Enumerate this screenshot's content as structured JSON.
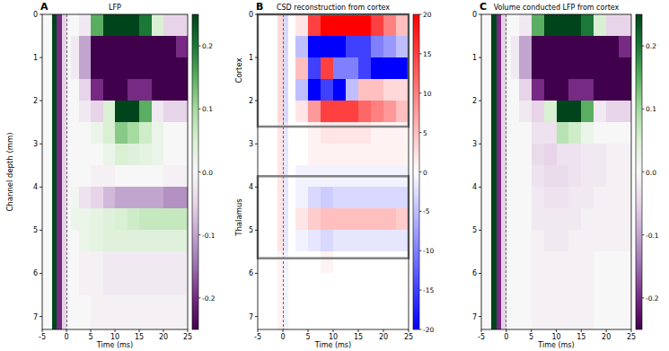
{
  "chart_data": [
    {
      "type": "heatmap",
      "label": "A",
      "title": "LFP",
      "xlabel": "Time (ms)",
      "ylabel": "Channel depth (mm)",
      "xlim": [
        -5,
        25
      ],
      "ylim": [
        7.3,
        0
      ],
      "xticks": [
        -5,
        0,
        5,
        10,
        15,
        20,
        25
      ],
      "yticks": [
        0,
        1,
        2,
        3,
        4,
        5,
        6,
        7
      ],
      "vline": 0,
      "color": [
        "#40004b",
        "#762a83",
        "#9970ab",
        "#c2a5cf",
        "#e7d4e8",
        "#f7f7f7",
        "#d9f0d3",
        "#a6dba0",
        "#5aae61",
        "#1b7837",
        "#00441b"
      ],
      "colorbar": {
        "range": [
          -0.25,
          0.25
        ],
        "ticks": [
          -0.2,
          -0.1,
          {
            "value": 0,
            "label": "0.0"
          },
          0.1,
          0.2
        ]
      },
      "x_edges": [
        -5,
        -3,
        -2,
        -1,
        0,
        1,
        2.5,
        5,
        7.5,
        10,
        12.5,
        15,
        17.5,
        20,
        22.5,
        25
      ],
      "y_edges": [
        0,
        0.5,
        1,
        1.5,
        2,
        2.5,
        3,
        3.5,
        4,
        4.5,
        5,
        5.5,
        6,
        6.5,
        7,
        7.3
      ],
      "cells": [
        [
          0,
          0.25,
          -0.2,
          -0.05,
          0,
          0,
          -0.02,
          0.15,
          0.3,
          0.3,
          0.3,
          0.2,
          0.05,
          -0.05,
          -0.05
        ],
        [
          0,
          0.25,
          -0.2,
          -0.05,
          0,
          -0.02,
          -0.1,
          -0.3,
          -0.3,
          -0.3,
          -0.3,
          -0.3,
          -0.3,
          -0.25,
          -0.2
        ],
        [
          0,
          0.25,
          -0.2,
          -0.05,
          0,
          -0.02,
          -0.1,
          -0.3,
          -0.3,
          -0.3,
          -0.3,
          -0.3,
          -0.3,
          -0.3,
          -0.3
        ],
        [
          0,
          0.25,
          -0.2,
          -0.05,
          0,
          0,
          -0.05,
          -0.2,
          -0.3,
          -0.25,
          -0.2,
          -0.2,
          -0.25,
          -0.3,
          -0.3
        ],
        [
          0,
          0.25,
          -0.2,
          -0.05,
          0,
          0,
          -0.02,
          -0.05,
          0.05,
          0.3,
          0.3,
          0.15,
          -0.02,
          -0.05,
          -0.05
        ],
        [
          0,
          0.25,
          -0.2,
          -0.05,
          0,
          0,
          0,
          0.02,
          0.05,
          0.12,
          0.1,
          0.06,
          0.02,
          0,
          0
        ],
        [
          0,
          0.25,
          -0.2,
          -0.05,
          0,
          0,
          0,
          0,
          0.02,
          0.05,
          0.04,
          0.03,
          0.02,
          0,
          0
        ],
        [
          0,
          0.25,
          -0.2,
          -0.05,
          0,
          0,
          0,
          -0.01,
          -0.01,
          0,
          0,
          0,
          0,
          -0.01,
          -0.01
        ],
        [
          0,
          0.25,
          -0.2,
          -0.05,
          0,
          0.01,
          -0.03,
          -0.05,
          -0.08,
          -0.1,
          -0.1,
          -0.1,
          -0.1,
          -0.12,
          -0.12
        ],
        [
          0,
          0.25,
          -0.2,
          -0.05,
          0,
          0.02,
          0.02,
          0.03,
          0.04,
          0.05,
          0.06,
          0.07,
          0.07,
          0.07,
          0.07
        ],
        [
          0,
          0.25,
          -0.2,
          -0.05,
          0,
          0,
          0.02,
          0.03,
          0.04,
          0.04,
          0.04,
          0.04,
          0.04,
          0.04,
          0.04
        ],
        [
          0,
          0.25,
          -0.2,
          -0.05,
          0,
          0,
          -0.01,
          -0.01,
          -0.02,
          -0.02,
          -0.02,
          -0.02,
          -0.02,
          -0.02,
          -0.02
        ],
        [
          0,
          0.25,
          -0.2,
          -0.05,
          0,
          0,
          -0.01,
          -0.01,
          -0.02,
          -0.02,
          -0.02,
          -0.02,
          -0.02,
          -0.02,
          -0.02
        ],
        [
          0,
          0.25,
          -0.2,
          -0.05,
          0,
          0,
          0,
          -0.01,
          -0.01,
          -0.01,
          -0.01,
          -0.01,
          -0.01,
          -0.01,
          -0.01
        ],
        [
          0,
          0.25,
          -0.2,
          -0.05,
          0,
          0,
          0,
          -0.01,
          -0.01,
          -0.01,
          -0.01,
          -0.01,
          -0.01,
          -0.01,
          -0.01
        ]
      ]
    },
    {
      "type": "heatmap",
      "label": "B",
      "title": "CSD reconstruction from cortex",
      "xlabel": "Time (ms)",
      "xlim": [
        -5,
        25
      ],
      "ylim": [
        7.3,
        0
      ],
      "xticks": [
        -5,
        0,
        5,
        10,
        15,
        20,
        25
      ],
      "yticks": [
        0,
        1,
        2,
        3,
        4,
        5,
        6,
        7
      ],
      "vline": 0,
      "color": [
        "#0000ff",
        "#ffffff",
        "#ff0000"
      ],
      "colorbar": {
        "range": [
          -20,
          20
        ],
        "ticks": [
          -20,
          -15,
          -10,
          -5,
          0,
          5,
          10,
          15,
          20
        ]
      },
      "regions": [
        {
          "label": "Cortex",
          "ylim": [
            0,
            2.6
          ]
        },
        {
          "label": "Thalamus",
          "ylim": [
            3.75,
            5.65
          ]
        }
      ],
      "x_edges": [
        -5,
        -3,
        -2,
        -1,
        0,
        1,
        2.5,
        5,
        7.5,
        10,
        12.5,
        15,
        17.5,
        20,
        22.5,
        25
      ],
      "y_edges": [
        0,
        0.5,
        1,
        1.5,
        2,
        2.5,
        3,
        3.5,
        4,
        4.5,
        5,
        5.5,
        6,
        6.5,
        7,
        7.3
      ],
      "cells": [
        [
          0,
          0,
          0,
          3,
          -3,
          0,
          2,
          15,
          20,
          20,
          20,
          20,
          15,
          10,
          5
        ],
        [
          0,
          0,
          0,
          3,
          -3,
          0,
          -5,
          -20,
          -20,
          -20,
          -15,
          -15,
          -10,
          -8,
          -5
        ],
        [
          0,
          0,
          0,
          3,
          -3,
          0,
          5,
          -15,
          15,
          -10,
          -10,
          -15,
          -20,
          -20,
          -20
        ],
        [
          0,
          0,
          0,
          3,
          -3,
          0,
          -5,
          -20,
          -15,
          -20,
          -5,
          5,
          5,
          3,
          3
        ],
        [
          0,
          0,
          0,
          3,
          -3,
          0,
          2,
          8,
          15,
          15,
          15,
          12,
          10,
          8,
          5
        ],
        [
          0,
          0,
          0,
          2,
          -2,
          0,
          0,
          1,
          2,
          2,
          2,
          2,
          1,
          1,
          1
        ],
        [
          0,
          0,
          0,
          2,
          -2,
          0,
          0,
          1,
          1,
          1,
          1,
          1,
          1,
          1,
          1
        ],
        [
          0,
          0,
          0,
          2,
          -2,
          0,
          -1,
          -1,
          -1,
          -1,
          -1,
          -1,
          -1,
          -1,
          -1
        ],
        [
          0,
          0,
          0,
          2,
          -2,
          0,
          -1,
          -3,
          -4,
          -3,
          -3,
          -3,
          -3,
          -3,
          -3
        ],
        [
          0,
          0,
          0,
          2,
          -2,
          0,
          2,
          4,
          5,
          5,
          5,
          5,
          5,
          5,
          4
        ],
        [
          0,
          0,
          0,
          2,
          -2,
          0,
          -1,
          -2,
          -3,
          -2,
          -2,
          -2,
          -2,
          -2,
          -2
        ],
        [
          0,
          0,
          0,
          1,
          -1,
          0,
          0,
          0,
          1,
          0,
          0,
          0,
          0,
          0,
          0
        ],
        [
          0,
          0,
          0,
          1,
          -1,
          0,
          0,
          0,
          0,
          0,
          0,
          0,
          0,
          0,
          0
        ],
        [
          0,
          0,
          0,
          1,
          -1,
          0,
          0,
          0,
          0,
          0,
          0,
          0,
          0,
          0,
          0
        ],
        [
          0,
          0,
          0,
          1,
          -1,
          0,
          0,
          0,
          0,
          0,
          0,
          0,
          0,
          0,
          0
        ]
      ]
    },
    {
      "type": "heatmap",
      "label": "C",
      "title": "Volume conducted LFP from cortex",
      "xlabel": "Time (ms)",
      "xlim": [
        -5,
        25
      ],
      "ylim": [
        7.3,
        0
      ],
      "xticks": [
        -5,
        0,
        5,
        10,
        15,
        20,
        25
      ],
      "yticks": [
        0,
        1,
        2,
        3,
        4,
        5,
        6,
        7
      ],
      "vline": 0,
      "color": [
        "#40004b",
        "#762a83",
        "#9970ab",
        "#c2a5cf",
        "#e7d4e8",
        "#f7f7f7",
        "#d9f0d3",
        "#a6dba0",
        "#5aae61",
        "#1b7837",
        "#00441b"
      ],
      "colorbar": {
        "range": [
          -0.25,
          0.25
        ],
        "ticks": [
          -0.2,
          -0.1,
          {
            "value": 0,
            "label": "0.0"
          },
          0.1,
          0.2
        ]
      },
      "x_edges": [
        -5,
        -3,
        -2,
        -1,
        0,
        1,
        2.5,
        5,
        7.5,
        10,
        12.5,
        15,
        17.5,
        20,
        22.5,
        25
      ],
      "y_edges": [
        0,
        0.5,
        1,
        1.5,
        2,
        2.5,
        3,
        3.5,
        4,
        4.5,
        5,
        5.5,
        6,
        6.5,
        7,
        7.3
      ],
      "cells": [
        [
          0,
          0.25,
          -0.2,
          -0.05,
          0,
          0,
          -0.02,
          0.15,
          0.3,
          0.3,
          0.3,
          0.2,
          0.05,
          -0.05,
          -0.05
        ],
        [
          0,
          0.25,
          -0.2,
          -0.05,
          0,
          -0.02,
          -0.1,
          -0.3,
          -0.3,
          -0.3,
          -0.3,
          -0.3,
          -0.3,
          -0.25,
          -0.2
        ],
        [
          0,
          0.25,
          -0.2,
          -0.05,
          0,
          -0.02,
          -0.1,
          -0.3,
          -0.3,
          -0.3,
          -0.3,
          -0.3,
          -0.3,
          -0.3,
          -0.3
        ],
        [
          0,
          0.25,
          -0.2,
          -0.05,
          0,
          0,
          -0.05,
          -0.2,
          -0.3,
          -0.25,
          -0.2,
          -0.2,
          -0.25,
          -0.3,
          -0.3
        ],
        [
          0,
          0.25,
          -0.2,
          -0.05,
          0,
          0,
          -0.02,
          -0.05,
          0.05,
          0.3,
          0.3,
          0.15,
          -0.02,
          -0.05,
          -0.05
        ],
        [
          0,
          0.25,
          -0.2,
          -0.05,
          0,
          0,
          0,
          -0.03,
          -0.03,
          0.08,
          0.06,
          0.02,
          0,
          0,
          0
        ],
        [
          0,
          0.25,
          -0.2,
          -0.05,
          0,
          0,
          0,
          -0.04,
          -0.05,
          -0.03,
          -0.03,
          -0.02,
          -0.02,
          -0.01,
          -0.01
        ],
        [
          0,
          0.25,
          -0.2,
          -0.05,
          0,
          0,
          0,
          -0.03,
          -0.04,
          -0.04,
          -0.03,
          -0.02,
          -0.02,
          -0.01,
          -0.01
        ],
        [
          0,
          0.25,
          -0.2,
          -0.05,
          0,
          0,
          0,
          -0.02,
          -0.03,
          -0.03,
          -0.02,
          -0.02,
          -0.01,
          -0.01,
          -0.01
        ],
        [
          0,
          0.25,
          -0.2,
          -0.05,
          0,
          0,
          0,
          -0.02,
          -0.02,
          -0.02,
          -0.02,
          -0.01,
          -0.01,
          -0.01,
          -0.01
        ],
        [
          0,
          0.25,
          -0.2,
          -0.05,
          0,
          0,
          0,
          -0.01,
          -0.02,
          -0.02,
          -0.01,
          -0.01,
          -0.01,
          -0.01,
          -0.01
        ],
        [
          0,
          0.25,
          -0.2,
          -0.05,
          0,
          0,
          0,
          -0.01,
          -0.01,
          -0.01,
          -0.01,
          -0.01,
          0,
          0,
          0
        ],
        [
          0,
          0.25,
          -0.2,
          -0.05,
          0,
          0,
          0,
          -0.01,
          -0.01,
          -0.01,
          -0.01,
          -0.01,
          0,
          0,
          0
        ],
        [
          0,
          0.25,
          -0.2,
          -0.05,
          0,
          0,
          0,
          -0.01,
          -0.01,
          -0.01,
          -0.01,
          -0.01,
          0,
          0,
          0
        ],
        [
          0,
          0.25,
          -0.2,
          -0.05,
          0,
          0,
          0,
          -0.01,
          -0.01,
          -0.01,
          -0.01,
          -0.01,
          0,
          0,
          0
        ]
      ]
    }
  ]
}
